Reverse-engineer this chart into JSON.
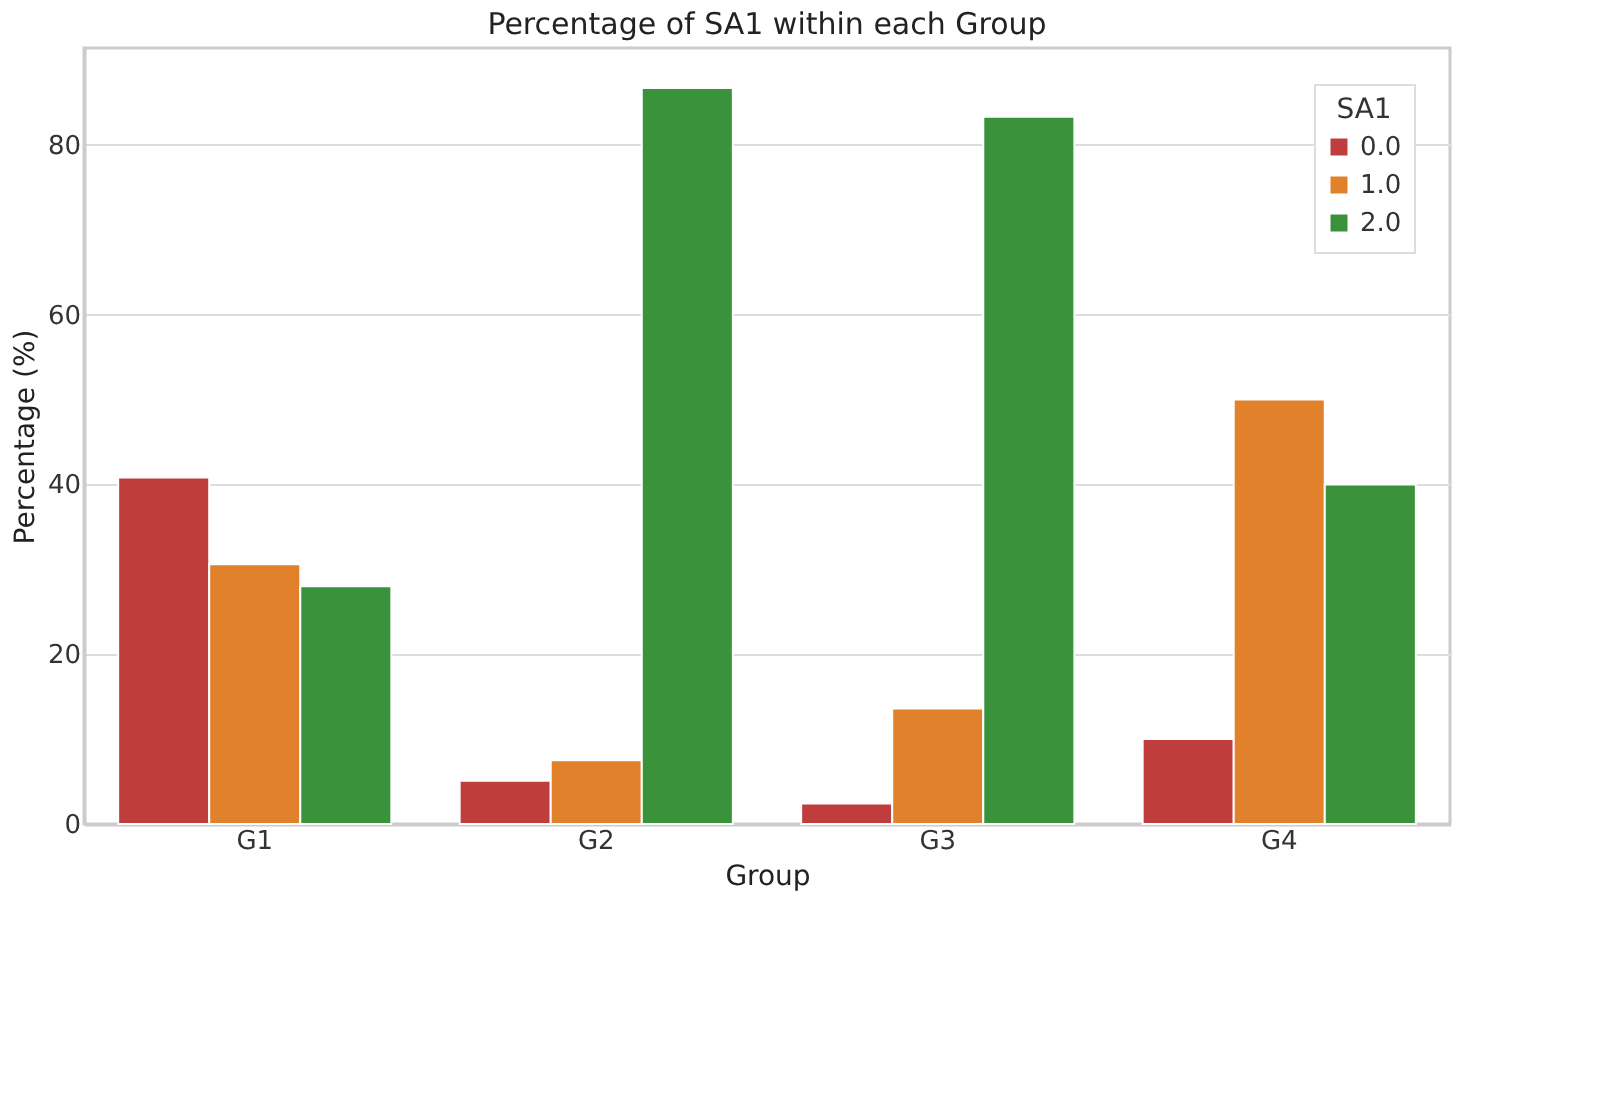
{
  "chart_data": {
    "type": "bar",
    "title": "Percentage of SA1 within each Group",
    "xlabel": "Group",
    "ylabel": "Percentage (%)",
    "legend_title": "SA1",
    "categories": [
      "G1",
      "G2",
      "G3",
      "G4"
    ],
    "series": [
      {
        "name": "0.0",
        "color": "#c03d3e",
        "values": [
          40.8,
          5.1,
          2.4,
          10.0
        ]
      },
      {
        "name": "1.0",
        "color": "#e1812c",
        "values": [
          30.6,
          7.5,
          13.6,
          50.0
        ]
      },
      {
        "name": "2.0",
        "color": "#3a923a",
        "values": [
          28.0,
          86.7,
          83.3,
          40.0
        ]
      }
    ],
    "ylim": [
      0,
      91.4
    ],
    "yticks": [
      0,
      20,
      40,
      60,
      80
    ],
    "grid": "y",
    "legend": "top right"
  }
}
